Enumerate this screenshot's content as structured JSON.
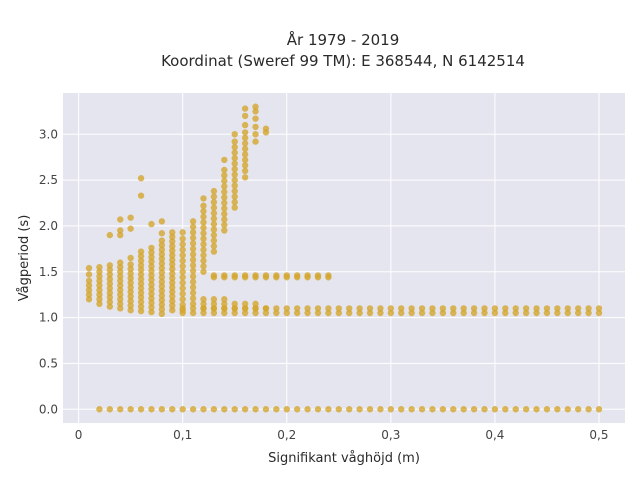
{
  "chart_data": {
    "type": "scatter",
    "title_lines": [
      "År 1979 - 2019",
      "Koordinat (Sweref 99 TM): E 368544, N 6142514"
    ],
    "xlabel": "Signifikant våghöjd (m)",
    "ylabel": "Vågperiod (s)",
    "xlim": [
      -0.015,
      0.525
    ],
    "ylim": [
      -0.15,
      3.45
    ],
    "x_ticks": [
      0,
      0.1,
      0.2,
      0.3,
      0.4,
      0.5
    ],
    "x_tick_labels": [
      "0",
      "0,1",
      "0,2",
      "0,3",
      "0,4",
      "0,5"
    ],
    "y_ticks": [
      0,
      0.5,
      1.0,
      1.5,
      2.0,
      2.5,
      3.0
    ],
    "y_tick_labels": [
      "0.0",
      "0.5",
      "1.0",
      "1.5",
      "2.0",
      "2.5",
      "3.0"
    ],
    "grid": true,
    "plot_background": "#e5e5ef",
    "marker_color": "#d4a52a",
    "series": [
      {
        "x_start": 0.02,
        "x_end": 0.5,
        "x_step": 0.01,
        "y_values": [
          0.0
        ],
        "description_values": "zero-period band"
      },
      {
        "x_start": 0.1,
        "x_end": 0.5,
        "x_step": 0.01,
        "y_values": [
          1.05,
          1.1
        ]
      },
      {
        "x_start": 0.13,
        "x_end": 0.24,
        "x_step": 0.01,
        "y_values": [
          1.44,
          1.46
        ]
      }
    ],
    "columns": [
      {
        "x": 0.01,
        "y": [
          1.2,
          1.25,
          1.3,
          1.35,
          1.4,
          1.47,
          1.54
        ]
      },
      {
        "x": 0.02,
        "y": [
          1.15,
          1.2,
          1.25,
          1.3,
          1.35,
          1.4,
          1.45,
          1.5,
          1.55
        ]
      },
      {
        "x": 0.03,
        "y": [
          1.12,
          1.17,
          1.22,
          1.27,
          1.32,
          1.37,
          1.42,
          1.47,
          1.52,
          1.57,
          1.9
        ]
      },
      {
        "x": 0.04,
        "y": [
          1.1,
          1.15,
          1.2,
          1.25,
          1.3,
          1.35,
          1.4,
          1.45,
          1.5,
          1.55,
          1.6,
          1.9,
          1.95,
          2.07
        ]
      },
      {
        "x": 0.05,
        "y": [
          1.08,
          1.13,
          1.18,
          1.23,
          1.28,
          1.33,
          1.38,
          1.43,
          1.48,
          1.53,
          1.58,
          1.65,
          1.97,
          2.09
        ]
      },
      {
        "x": 0.06,
        "y": [
          1.07,
          1.12,
          1.17,
          1.22,
          1.27,
          1.32,
          1.37,
          1.42,
          1.47,
          1.52,
          1.57,
          1.62,
          1.67,
          1.72,
          2.33,
          2.52
        ]
      },
      {
        "x": 0.07,
        "y": [
          1.06,
          1.11,
          1.16,
          1.21,
          1.26,
          1.31,
          1.36,
          1.41,
          1.46,
          1.51,
          1.56,
          1.61,
          1.66,
          1.71,
          1.76,
          2.02
        ]
      },
      {
        "x": 0.08,
        "y": [
          1.04,
          1.09,
          1.14,
          1.19,
          1.24,
          1.29,
          1.34,
          1.39,
          1.44,
          1.49,
          1.54,
          1.59,
          1.64,
          1.69,
          1.74,
          1.79,
          1.84,
          1.92,
          2.05
        ]
      },
      {
        "x": 0.09,
        "y": [
          1.08,
          1.13,
          1.18,
          1.23,
          1.28,
          1.33,
          1.38,
          1.43,
          1.48,
          1.53,
          1.58,
          1.63,
          1.68,
          1.73,
          1.78,
          1.83,
          1.88,
          1.93
        ]
      },
      {
        "x": 0.1,
        "y": [
          1.08,
          1.14,
          1.2,
          1.26,
          1.32,
          1.38,
          1.44,
          1.5,
          1.56,
          1.62,
          1.68,
          1.74,
          1.8,
          1.86,
          1.93
        ]
      },
      {
        "x": 0.11,
        "y": [
          1.15,
          1.21,
          1.27,
          1.33,
          1.39,
          1.45,
          1.51,
          1.57,
          1.63,
          1.69,
          1.75,
          1.81,
          1.87,
          1.93,
          1.99,
          2.05
        ]
      },
      {
        "x": 0.12,
        "y": [
          1.1,
          1.15,
          1.2,
          1.5,
          1.56,
          1.62,
          1.68,
          1.74,
          1.8,
          1.86,
          1.92,
          1.98,
          2.04,
          2.1,
          2.16,
          2.22,
          2.3
        ]
      },
      {
        "x": 0.13,
        "y": [
          1.1,
          1.15,
          1.2,
          1.72,
          1.78,
          1.84,
          1.9,
          1.96,
          2.02,
          2.08,
          2.14,
          2.2,
          2.26,
          2.32,
          2.38
        ]
      },
      {
        "x": 0.14,
        "y": [
          1.1,
          1.15,
          1.2,
          1.95,
          2.01,
          2.07,
          2.13,
          2.19,
          2.25,
          2.31,
          2.37,
          2.43,
          2.49,
          2.55,
          2.61,
          2.72
        ]
      },
      {
        "x": 0.15,
        "y": [
          1.1,
          1.15,
          2.2,
          2.26,
          2.32,
          2.38,
          2.44,
          2.5,
          2.56,
          2.62,
          2.68,
          2.74,
          2.8,
          2.86,
          2.92,
          3.0
        ]
      },
      {
        "x": 0.16,
        "y": [
          1.1,
          1.15,
          2.53,
          2.6,
          2.66,
          2.72,
          2.78,
          2.84,
          2.9,
          2.96,
          3.02,
          3.1,
          3.2,
          3.28
        ]
      },
      {
        "x": 0.17,
        "y": [
          1.1,
          1.15,
          2.92,
          3.0,
          3.08,
          3.17,
          3.25,
          3.3
        ]
      },
      {
        "x": 0.18,
        "y": [
          1.1,
          3.02,
          3.06
        ]
      }
    ]
  }
}
